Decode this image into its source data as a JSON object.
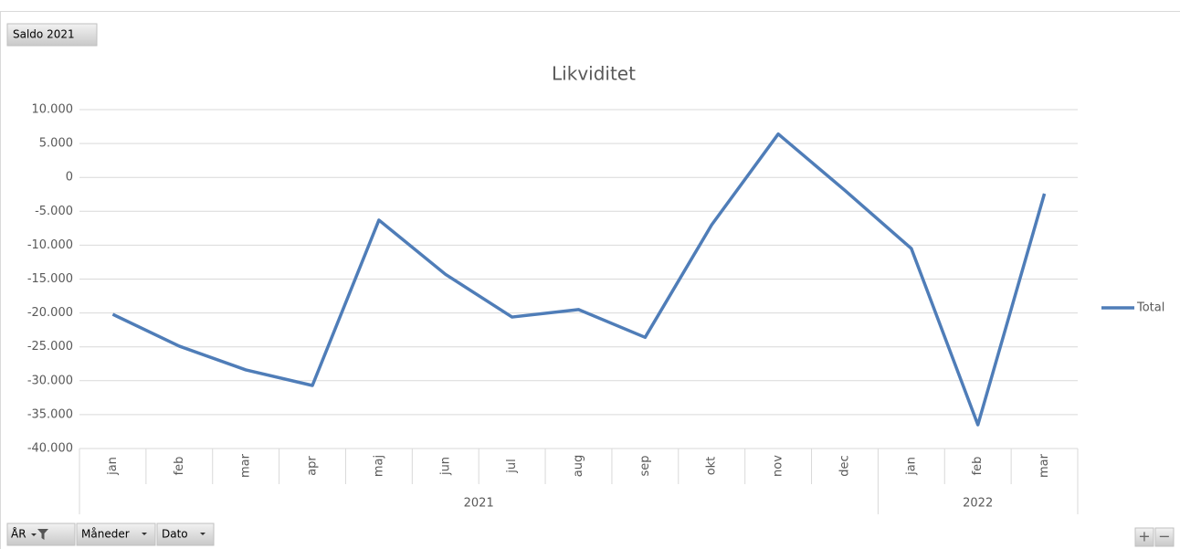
{
  "ui": {
    "field_button": "Saldo 2021",
    "axis_buttons": [
      "ÅR",
      "Måneder",
      "Dato"
    ],
    "zoom_in": "+",
    "zoom_out": "−"
  },
  "chart_data": {
    "type": "line",
    "title": "Likviditet",
    "groups": [
      {
        "name": "2021",
        "categories": [
          "jan",
          "feb",
          "mar",
          "apr",
          "maj",
          "jun",
          "jul",
          "aug",
          "sep",
          "okt",
          "nov",
          "dec"
        ]
      },
      {
        "name": "2022",
        "categories": [
          "jan",
          "feb",
          "mar"
        ]
      }
    ],
    "series": [
      {
        "name": "Total",
        "color": "#4f7db8",
        "values": [
          -20200,
          -24900,
          -28400,
          -30700,
          -6300,
          -14300,
          -20600,
          -19500,
          -23600,
          -7000,
          6400,
          -1900,
          -10500,
          -36500,
          -2400
        ]
      }
    ],
    "ylim": [
      -40000,
      10000
    ],
    "yticks": [
      {
        "value": -40000,
        "label": "-40.000"
      },
      {
        "value": -35000,
        "label": "-35.000"
      },
      {
        "value": -30000,
        "label": "-30.000"
      },
      {
        "value": -25000,
        "label": "-25.000"
      },
      {
        "value": -20000,
        "label": "-20.000"
      },
      {
        "value": -15000,
        "label": "-15.000"
      },
      {
        "value": -10000,
        "label": "-10.000"
      },
      {
        "value": -5000,
        "label": "-5.000"
      },
      0,
      {
        "value": 5000,
        "label": "5.000"
      },
      {
        "value": 10000,
        "label": "10.000"
      }
    ],
    "grid": true,
    "legend": "right"
  }
}
